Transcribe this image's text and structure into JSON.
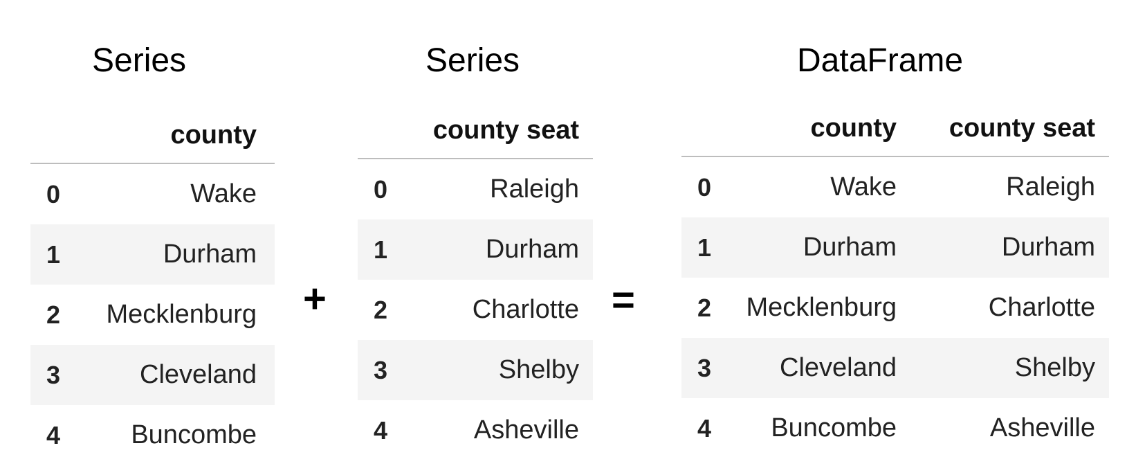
{
  "left": {
    "title": "Series",
    "header": "county",
    "rows": [
      {
        "idx": "0",
        "value": "Wake"
      },
      {
        "idx": "1",
        "value": "Durham"
      },
      {
        "idx": "2",
        "value": "Mecklenburg"
      },
      {
        "idx": "3",
        "value": "Cleveland"
      },
      {
        "idx": "4",
        "value": "Buncombe"
      }
    ]
  },
  "plus_sign": "+",
  "middle": {
    "title": "Series",
    "header": "county seat",
    "rows": [
      {
        "idx": "0",
        "value": "Raleigh"
      },
      {
        "idx": "1",
        "value": "Durham"
      },
      {
        "idx": "2",
        "value": "Charlotte"
      },
      {
        "idx": "3",
        "value": "Shelby"
      },
      {
        "idx": "4",
        "value": "Asheville"
      }
    ]
  },
  "equals_sign": "=",
  "right": {
    "title": "DataFrame",
    "headers": [
      "county",
      "county seat"
    ],
    "rows": [
      {
        "idx": "0",
        "values": [
          "Wake",
          "Raleigh"
        ]
      },
      {
        "idx": "1",
        "values": [
          "Durham",
          "Durham"
        ]
      },
      {
        "idx": "2",
        "values": [
          "Mecklenburg",
          "Charlotte"
        ]
      },
      {
        "idx": "3",
        "values": [
          "Cleveland",
          "Shelby"
        ]
      },
      {
        "idx": "4",
        "values": [
          "Buncombe",
          "Asheville"
        ]
      }
    ]
  },
  "colors": {
    "stripe": "#f4f4f4",
    "header_rule": "#bdbdbd",
    "text": "#222222"
  }
}
